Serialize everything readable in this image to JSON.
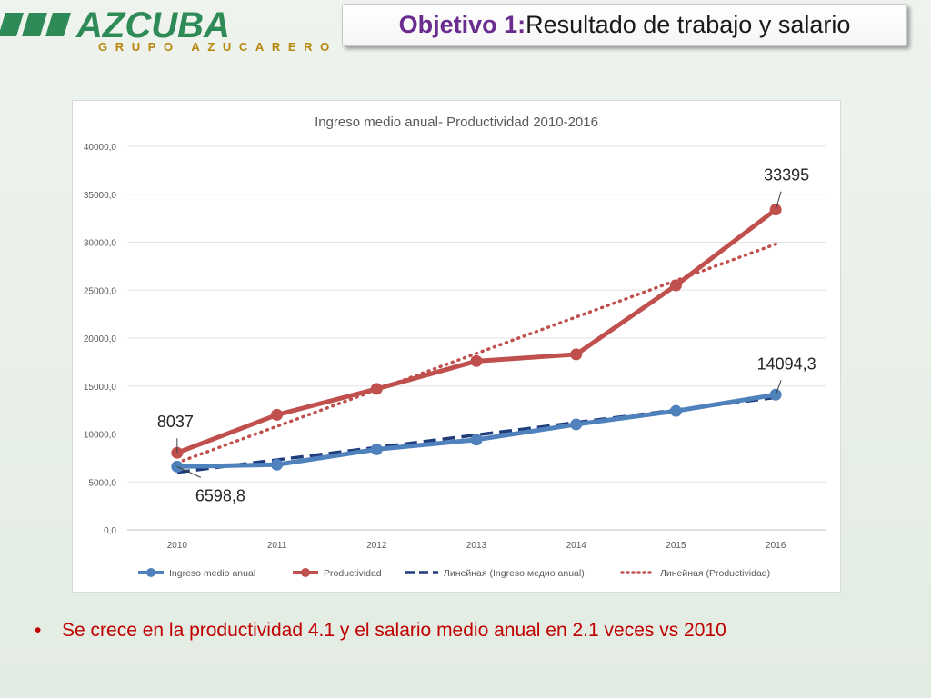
{
  "logo": {
    "brand": "AZCUBA",
    "subtitle": "GRUPO AZUCARERO",
    "colors": {
      "green": "#2e8b57"
    }
  },
  "slide": {
    "title_highlight": "Objetivo 1:",
    "title_rest": "Resultado de trabajo y salario",
    "bullet": "Se crece en la productividad  4.1 y el salario medio anual en 2.1 veces vs 2010"
  },
  "chart_data": {
    "type": "line",
    "title": "Ingreso medio anual- Productividad 2010-2016",
    "categories": [
      "2010",
      "2011",
      "2012",
      "2013",
      "2014",
      "2015",
      "2016"
    ],
    "ylim": [
      0,
      40000
    ],
    "yticks": [
      "0,0",
      "5000,0",
      "10000,0",
      "15000,0",
      "20000,0",
      "25000,0",
      "30000,0",
      "35000,0",
      "40000,0"
    ],
    "series": [
      {
        "name": "Ingreso medio anual",
        "values": [
          6598.8,
          6800,
          8400,
          9400,
          11000,
          12400,
          14094.3
        ],
        "color": "#4f81bd",
        "style": "line-markers"
      },
      {
        "name": "Productividad",
        "values": [
          8037,
          12000,
          14700,
          17600,
          18300,
          25500,
          33395
        ],
        "color": "#c0504d",
        "style": "line-markers"
      },
      {
        "name": "Линейная (Ingreso медио anual)",
        "values": [
          6000,
          7300,
          8600,
          9900,
          11200,
          12500,
          13800
        ],
        "color": "#1f3d7a",
        "style": "dashed"
      },
      {
        "name": "Линейная (Productividad)",
        "values": [
          7000,
          10800,
          14600,
          18400,
          22200,
          26000,
          29800
        ],
        "color": "#c0504d",
        "style": "dotted"
      }
    ],
    "data_labels": [
      {
        "series": 1,
        "index": 0,
        "text": "8037"
      },
      {
        "series": 0,
        "index": 0,
        "text": "6598,8"
      },
      {
        "series": 1,
        "index": 6,
        "text": "33395"
      },
      {
        "series": 0,
        "index": 6,
        "text": "14094,3"
      }
    ],
    "grid": true,
    "legend": "bottom"
  }
}
